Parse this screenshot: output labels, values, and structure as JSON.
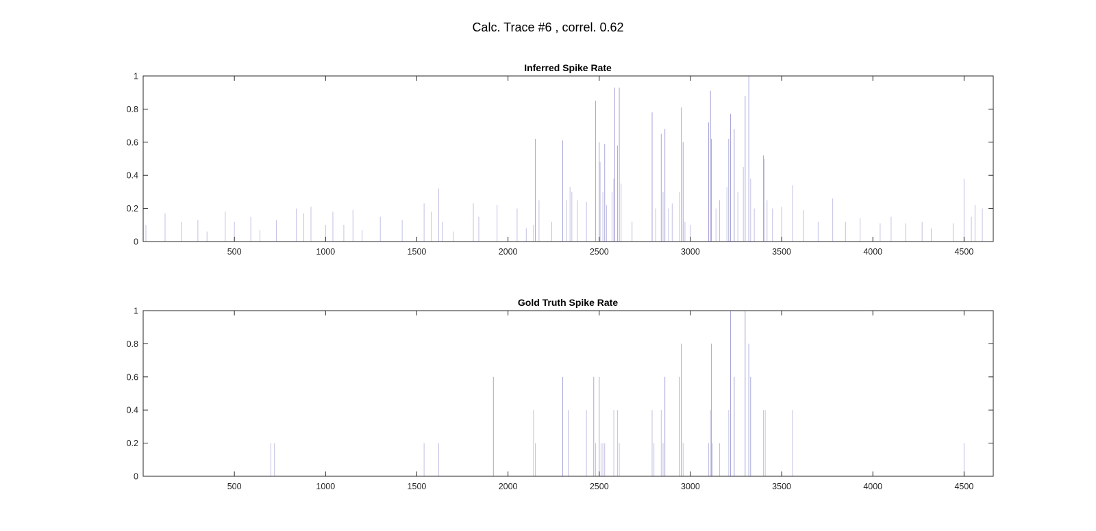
{
  "figure": {
    "title": "Calc. Trace #6 , correl. 0.62",
    "bar_color": "#3d3aa8",
    "background": "#ffffff"
  },
  "chart_data": [
    {
      "type": "bar",
      "title": "Inferred Spike Rate",
      "xlabel": "",
      "ylabel": "",
      "xlim": [
        0,
        4660
      ],
      "ylim": [
        0,
        1
      ],
      "xticks": [
        "500",
        "1000",
        "1500",
        "2000",
        "2500",
        "3000",
        "3500",
        "4000",
        "4500"
      ],
      "yticks": [
        "0",
        "0.2",
        "0.4",
        "0.6",
        "0.8",
        "1"
      ],
      "grid": false,
      "points": [
        [
          15,
          0.1
        ],
        [
          120,
          0.17
        ],
        [
          210,
          0.12
        ],
        [
          300,
          0.13
        ],
        [
          350,
          0.06
        ],
        [
          450,
          0.18
        ],
        [
          500,
          0.12
        ],
        [
          590,
          0.15
        ],
        [
          640,
          0.07
        ],
        [
          730,
          0.13
        ],
        [
          840,
          0.2
        ],
        [
          880,
          0.17
        ],
        [
          920,
          0.21
        ],
        [
          1000,
          0.1
        ],
        [
          1040,
          0.18
        ],
        [
          1100,
          0.1
        ],
        [
          1150,
          0.19
        ],
        [
          1200,
          0.07
        ],
        [
          1300,
          0.15
        ],
        [
          1420,
          0.13
        ],
        [
          1540,
          0.23
        ],
        [
          1580,
          0.18
        ],
        [
          1620,
          0.32
        ],
        [
          1640,
          0.12
        ],
        [
          1700,
          0.06
        ],
        [
          1810,
          0.23
        ],
        [
          1840,
          0.15
        ],
        [
          1940,
          0.22
        ],
        [
          2050,
          0.2
        ],
        [
          2100,
          0.08
        ],
        [
          2140,
          0.1
        ],
        [
          2150,
          0.62
        ],
        [
          2170,
          0.25
        ],
        [
          2240,
          0.12
        ],
        [
          2300,
          0.61
        ],
        [
          2320,
          0.25
        ],
        [
          2340,
          0.33
        ],
        [
          2350,
          0.3
        ],
        [
          2380,
          0.25
        ],
        [
          2430,
          0.24
        ],
        [
          2480,
          0.85
        ],
        [
          2500,
          0.6
        ],
        [
          2505,
          0.48
        ],
        [
          2520,
          0.3
        ],
        [
          2530,
          0.59
        ],
        [
          2540,
          0.22
        ],
        [
          2570,
          0.3
        ],
        [
          2580,
          0.38
        ],
        [
          2585,
          0.93
        ],
        [
          2600,
          0.58
        ],
        [
          2610,
          0.93
        ],
        [
          2620,
          0.35
        ],
        [
          2680,
          0.12
        ],
        [
          2790,
          0.78
        ],
        [
          2810,
          0.2
        ],
        [
          2840,
          0.65
        ],
        [
          2850,
          0.3
        ],
        [
          2860,
          0.68
        ],
        [
          2880,
          0.2
        ],
        [
          2900,
          0.23
        ],
        [
          2940,
          0.3
        ],
        [
          2950,
          0.81
        ],
        [
          2960,
          0.6
        ],
        [
          2970,
          0.12
        ],
        [
          3000,
          0.1
        ],
        [
          3100,
          0.72
        ],
        [
          3110,
          0.91
        ],
        [
          3115,
          0.62
        ],
        [
          3140,
          0.2
        ],
        [
          3160,
          0.25
        ],
        [
          3200,
          0.33
        ],
        [
          3210,
          0.62
        ],
        [
          3220,
          0.77
        ],
        [
          3240,
          0.68
        ],
        [
          3260,
          0.3
        ],
        [
          3290,
          0.45
        ],
        [
          3300,
          0.88
        ],
        [
          3320,
          1.0
        ],
        [
          3330,
          0.38
        ],
        [
          3350,
          0.2
        ],
        [
          3400,
          0.52
        ],
        [
          3405,
          0.5
        ],
        [
          3420,
          0.25
        ],
        [
          3450,
          0.2
        ],
        [
          3500,
          0.21
        ],
        [
          3560,
          0.34
        ],
        [
          3620,
          0.19
        ],
        [
          3700,
          0.12
        ],
        [
          3780,
          0.26
        ],
        [
          3850,
          0.12
        ],
        [
          3930,
          0.14
        ],
        [
          4040,
          0.11
        ],
        [
          4100,
          0.15
        ],
        [
          4180,
          0.11
        ],
        [
          4270,
          0.12
        ],
        [
          4320,
          0.08
        ],
        [
          4440,
          0.11
        ],
        [
          4500,
          0.38
        ],
        [
          4540,
          0.15
        ],
        [
          4560,
          0.22
        ],
        [
          4600,
          0.2
        ]
      ]
    },
    {
      "type": "bar",
      "title": "Gold Truth Spike Rate",
      "xlabel": "",
      "ylabel": "",
      "xlim": [
        0,
        4660
      ],
      "ylim": [
        0,
        1
      ],
      "xticks": [
        "500",
        "1000",
        "1500",
        "2000",
        "2500",
        "3000",
        "3500",
        "4000",
        "4500"
      ],
      "yticks": [
        "0",
        "0.2",
        "0.4",
        "0.6",
        "0.8",
        "1"
      ],
      "grid": false,
      "points": [
        [
          700,
          0.2
        ],
        [
          720,
          0.2
        ],
        [
          1540,
          0.2
        ],
        [
          1620,
          0.2
        ],
        [
          1920,
          0.6
        ],
        [
          2140,
          0.4
        ],
        [
          2150,
          0.2
        ],
        [
          2300,
          0.6
        ],
        [
          2330,
          0.4
        ],
        [
          2430,
          0.4
        ],
        [
          2470,
          0.6
        ],
        [
          2480,
          0.2
        ],
        [
          2500,
          0.6
        ],
        [
          2510,
          0.2
        ],
        [
          2520,
          0.2
        ],
        [
          2530,
          0.2
        ],
        [
          2580,
          0.4
        ],
        [
          2600,
          0.4
        ],
        [
          2610,
          0.2
        ],
        [
          2790,
          0.4
        ],
        [
          2800,
          0.2
        ],
        [
          2840,
          0.4
        ],
        [
          2850,
          0.2
        ],
        [
          2860,
          0.6
        ],
        [
          2940,
          0.6
        ],
        [
          2950,
          0.8
        ],
        [
          2960,
          0.2
        ],
        [
          3100,
          0.2
        ],
        [
          3110,
          0.4
        ],
        [
          3115,
          0.8
        ],
        [
          3120,
          0.2
        ],
        [
          3160,
          0.2
        ],
        [
          3210,
          0.4
        ],
        [
          3220,
          1.0
        ],
        [
          3240,
          0.6
        ],
        [
          3300,
          1.0
        ],
        [
          3320,
          0.8
        ],
        [
          3330,
          0.6
        ],
        [
          3400,
          0.4
        ],
        [
          3410,
          0.4
        ],
        [
          3560,
          0.4
        ],
        [
          4500,
          0.2
        ]
      ]
    }
  ]
}
